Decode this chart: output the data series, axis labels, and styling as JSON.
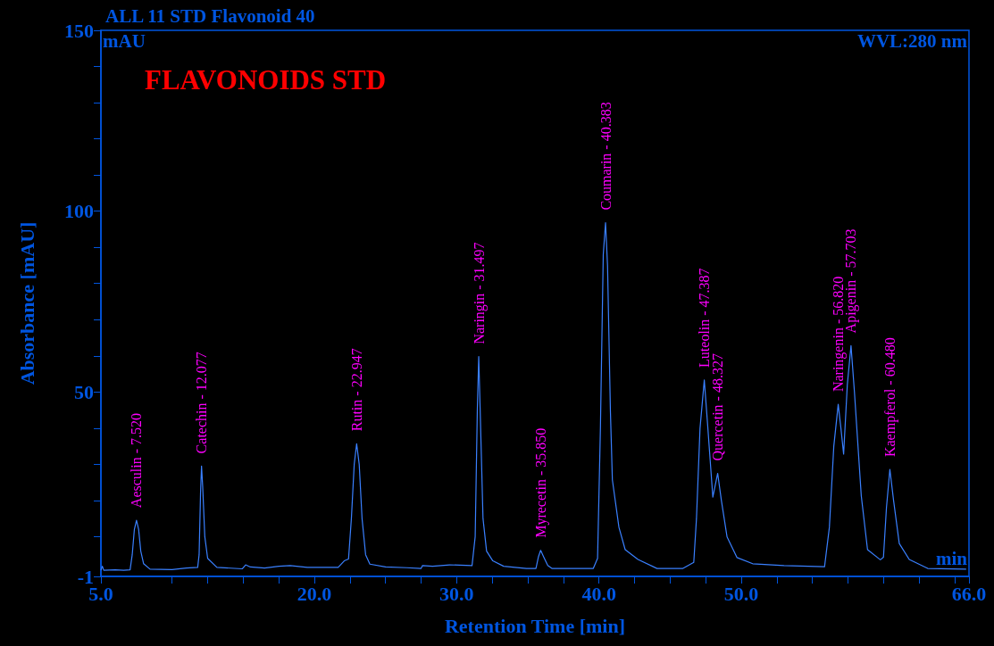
{
  "chart_data": {
    "type": "line",
    "title": "ALL 11 STD Flavonoid 40",
    "subtitle": "FLAVONOIDS STD",
    "xlabel": "Retention Time [min]",
    "ylabel": "Absorbance [mAU]",
    "annotations": [
      "mAU",
      "WVL:280 nm",
      "min",
      {
        "text": "Aesculin - 7.520",
        "x": 7.5,
        "y": 14.5
      },
      {
        "text": "Catechin - 12.077",
        "x": 12.07,
        "y": 29.5
      },
      {
        "text": "Rutin - 22.947",
        "x": 22.97,
        "y": 35.7
      },
      {
        "text": "Naringin - 31.497",
        "x": 31.55,
        "y": 59.8
      },
      {
        "text": "Myrecetin - 35.850",
        "x": 35.9,
        "y": 6.2
      },
      {
        "text": "Coumarin - 40.383",
        "x": 40.46,
        "y": 96.8
      },
      {
        "text": "Luteolin - 47.387",
        "x": 47.4,
        "y": 53.3
      },
      {
        "text": "Quercetin - 48.327",
        "x": 48.34,
        "y": 27.5
      },
      {
        "text": "Naringenin - 56.820",
        "x": 56.81,
        "y": 46.6
      },
      {
        "text": "Apigenin - 57.703",
        "x": 57.71,
        "y": 62.8
      },
      {
        "text": "Kaempferol - 60.480",
        "x": 60.44,
        "y": 28.6
      }
    ],
    "x": [
      5.0,
      5.1,
      5.2,
      6.0,
      6.6,
      7.05,
      7.2,
      7.35,
      7.5,
      7.65,
      7.8,
      8.0,
      8.45,
      10.0,
      11.0,
      11.8,
      11.9,
      12.0,
      12.07,
      12.15,
      12.3,
      12.5,
      13.15,
      14.94,
      15.17,
      15.5,
      16.5,
      17.5,
      18.3,
      19.5,
      21.67,
      22.1,
      22.4,
      22.6,
      22.8,
      22.97,
      23.15,
      23.35,
      23.6,
      23.9,
      25.0,
      26.5,
      27.5,
      27.6,
      28.3,
      29.5,
      31.08,
      31.3,
      31.45,
      31.55,
      31.65,
      31.85,
      32.1,
      32.54,
      33.3,
      34.9,
      35.57,
      35.75,
      35.9,
      36.1,
      36.4,
      36.69,
      39.6,
      39.9,
      40.1,
      40.3,
      40.46,
      40.6,
      40.8,
      40.94,
      41.4,
      41.84,
      42.74,
      44.08,
      45.9,
      46.66,
      46.85,
      47.1,
      47.4,
      47.65,
      48.0,
      48.34,
      48.6,
      49.0,
      49.7,
      50.8,
      53.0,
      55.85,
      56.19,
      56.5,
      56.81,
      57.0,
      57.19,
      57.45,
      57.71,
      57.95,
      58.43,
      58.87,
      59.77,
      59.99,
      60.2,
      60.44,
      60.7,
      61.1,
      61.8,
      63.1,
      65.8
    ],
    "series": [
      {
        "color": "#3a80ff",
        "values": [
          0.7,
          1.8,
          0.7,
          0.8,
          0.7,
          0.8,
          5,
          12,
          14.5,
          12,
          6,
          2.5,
          1.0,
          0.9,
          1.3,
          1.5,
          5,
          22,
          29.5,
          24,
          10,
          4,
          1.5,
          1.1,
          2.2,
          1.6,
          1.3,
          1.8,
          2.0,
          1.5,
          1.5,
          3.3,
          3.8,
          15,
          30,
          35.7,
          30,
          15,
          5,
          2.4,
          1.6,
          1.4,
          1.2,
          2.0,
          1.8,
          2.2,
          2.0,
          10,
          45,
          59.8,
          45,
          15,
          6,
          3.3,
          1.8,
          1.2,
          1.2,
          4.5,
          6.2,
          4.5,
          2,
          1.2,
          1.2,
          4.0,
          40,
          88,
          96.8,
          85,
          45,
          25.7,
          12.6,
          6.4,
          3.7,
          1.2,
          1.2,
          2.9,
          15,
          40,
          53.3,
          40,
          20.9,
          27.5,
          20,
          9.9,
          4.2,
          2.5,
          2,
          1.7,
          12.6,
          35,
          46.6,
          40,
          32.8,
          52,
          62.8,
          50,
          21.3,
          6.4,
          3.6,
          4.3,
          18,
          28.6,
          20,
          8.1,
          3.7,
          1.2,
          1.0
        ]
      }
    ],
    "xlim": [
      5,
      66
    ],
    "xticks": [
      {
        "value": 5,
        "label": "5.0"
      },
      {
        "value": 10,
        "label": null
      },
      {
        "value": 12.5,
        "label": null
      },
      {
        "value": 15,
        "label": null
      },
      {
        "value": 17.5,
        "label": null
      },
      {
        "value": 20,
        "label": "20.0"
      },
      {
        "value": 22.5,
        "label": null
      },
      {
        "value": 25,
        "label": null
      },
      {
        "value": 27.5,
        "label": null
      },
      {
        "value": 30,
        "label": "30.0"
      },
      {
        "value": 32.5,
        "label": null
      },
      {
        "value": 35,
        "label": null
      },
      {
        "value": 37.5,
        "label": null
      },
      {
        "value": 40,
        "label": "40.0"
      },
      {
        "value": 42.5,
        "label": null
      },
      {
        "value": 45,
        "label": null
      },
      {
        "value": 47.5,
        "label": null
      },
      {
        "value": 50,
        "label": "50.0"
      },
      {
        "value": 52.5,
        "label": null
      },
      {
        "value": 55,
        "label": null
      },
      {
        "value": 57.5,
        "label": null
      },
      {
        "value": 60,
        "label": null
      },
      {
        "value": 62.5,
        "label": null
      },
      {
        "value": 65,
        "label": null
      },
      {
        "value": 66,
        "label": "66.0"
      }
    ],
    "ylim": [
      -1,
      150
    ],
    "yticks": [
      -1,
      {
        "value": 10,
        "label": null
      },
      {
        "value": 20,
        "label": null
      },
      {
        "value": 30,
        "label": null
      },
      {
        "value": 40,
        "label": null
      },
      50,
      {
        "value": 60,
        "label": null
      },
      {
        "value": 70,
        "label": null
      },
      {
        "value": 80,
        "label": null
      },
      {
        "value": 90,
        "label": null
      },
      100,
      {
        "value": 110,
        "label": null
      },
      {
        "value": 120,
        "label": null
      },
      {
        "value": 130,
        "label": null
      },
      {
        "value": 140,
        "label": null
      },
      150
    ],
    "grid": false,
    "marker": "none",
    "line_style": "solid"
  }
}
